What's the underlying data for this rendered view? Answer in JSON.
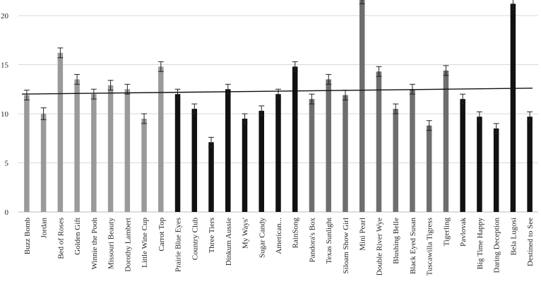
{
  "chart_data": {
    "type": "bar",
    "title": "",
    "xlabel": "",
    "ylabel": "",
    "ylim": [
      0,
      22
    ],
    "yticks": [
      0,
      5,
      10,
      15,
      20
    ],
    "grid": true,
    "trendline": {
      "start": 12.0,
      "end": 12.6,
      "color": "#111111"
    },
    "categories": [
      "Buzz Bomb",
      "Jordan",
      "Bed of Roses",
      "Golden Gift",
      "Winnie the Pooh",
      "Missouri Beauty",
      "Dorothy Lambert",
      "Little Wine Cup",
      "Carrot Top",
      "Prairie Blue Eyes",
      "Country Club",
      "Three Tiers",
      "Dinkum Aussie",
      "My Ways'",
      "Sugar Candy",
      "American...",
      "RainSong",
      "Pandora's Box",
      "Texas Sunlight",
      "Siloam Show Girl",
      "Mini Pearl",
      "Double River Wye",
      "Blushing Belle",
      "Black Eyed Susan",
      "Tuscawilla Tigress",
      "Tigerling",
      "Pavlovak",
      "Big Time Happy",
      "Daring Deception",
      "Bela Lugosi",
      "Destined to See"
    ],
    "values": [
      11.9,
      10.0,
      16.2,
      13.5,
      12.0,
      12.9,
      12.5,
      9.5,
      14.8,
      12.0,
      10.5,
      7.1,
      12.5,
      9.5,
      10.3,
      12.0,
      14.8,
      11.5,
      13.5,
      11.9,
      21.8,
      14.3,
      10.5,
      12.5,
      8.8,
      14.4,
      11.5,
      9.7,
      8.5,
      21.2,
      9.7
    ],
    "errors": [
      0.5,
      0.6,
      0.5,
      0.5,
      0.5,
      0.5,
      0.5,
      0.5,
      0.5,
      0.5,
      0.5,
      0.5,
      0.5,
      0.5,
      0.5,
      0.5,
      0.5,
      0.5,
      0.5,
      0.5,
      0.6,
      0.5,
      0.5,
      0.5,
      0.5,
      0.5,
      0.5,
      0.5,
      0.5,
      0.6,
      0.5
    ],
    "colors": [
      "#9a9a9a",
      "#9a9a9a",
      "#9a9a9a",
      "#9a9a9a",
      "#9a9a9a",
      "#9a9a9a",
      "#9a9a9a",
      "#9a9a9a",
      "#9a9a9a",
      "#111111",
      "#111111",
      "#111111",
      "#111111",
      "#111111",
      "#111111",
      "#111111",
      "#111111",
      "#6e6e6e",
      "#6e6e6e",
      "#6e6e6e",
      "#6e6e6e",
      "#6e6e6e",
      "#6e6e6e",
      "#6e6e6e",
      "#6e6e6e",
      "#6e6e6e",
      "#111111",
      "#111111",
      "#111111",
      "#111111",
      "#111111"
    ]
  }
}
